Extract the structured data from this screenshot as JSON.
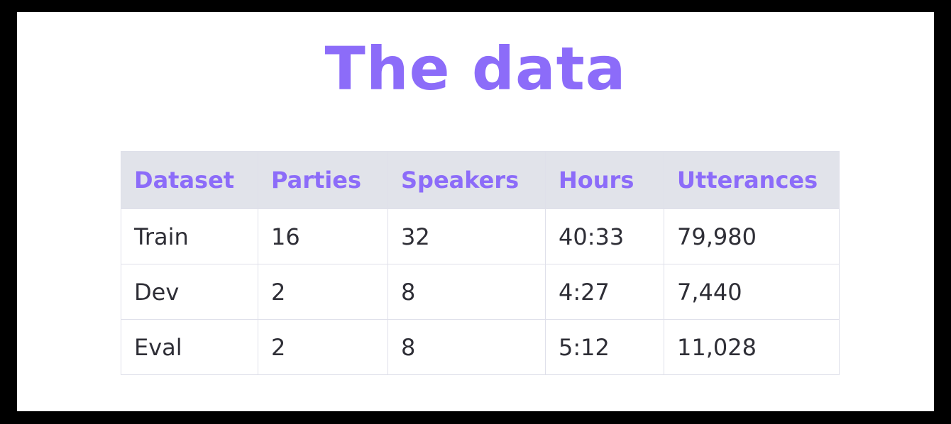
{
  "title": "The data",
  "table": {
    "headers": [
      "Dataset",
      "Parties",
      "Speakers",
      "Hours",
      "Utterances"
    ],
    "rows": [
      [
        "Train",
        "16",
        "32",
        "40:33",
        "79,980"
      ],
      [
        "Dev",
        "2",
        "8",
        "4:27",
        "7,440"
      ],
      [
        "Eval",
        "2",
        "8",
        "5:12",
        "11,028"
      ]
    ]
  },
  "colors": {
    "accent": "#8c6cf9",
    "header_background": "#e1e3ea",
    "text": "#2e2e36",
    "frame": "#000000"
  }
}
